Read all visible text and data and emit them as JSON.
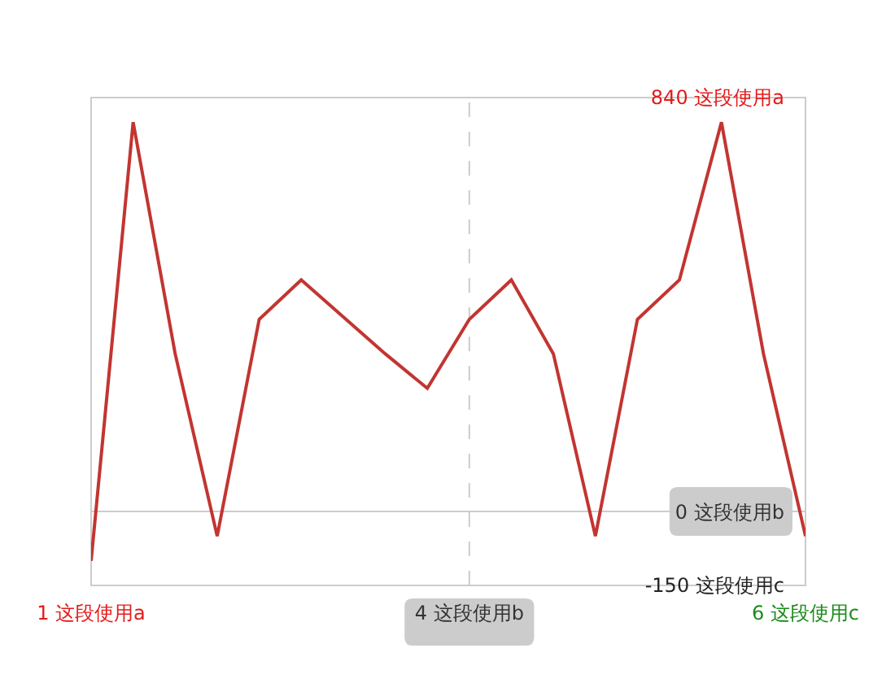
{
  "chart_data": {
    "type": "line",
    "categories": [
      "1 这段使用a",
      null,
      null,
      null,
      null,
      null,
      null,
      null,
      null,
      "4 这段使用b",
      null,
      null,
      null,
      null,
      null,
      null,
      null,
      "6 这段使用c"
    ],
    "values": [
      -100,
      790,
      320,
      -50,
      390,
      470,
      395,
      320,
      250,
      390,
      470,
      320,
      -50,
      390,
      470,
      790,
      320,
      -50
    ],
    "color": "#c23531",
    "line_style": "solid",
    "marker": "none",
    "ylim": [
      -150,
      840
    ],
    "yticks": [
      {
        "value": -150,
        "label": "-150 这段使用c"
      },
      {
        "value": 0,
        "label": "0 这段使用b"
      },
      {
        "value": 840,
        "label": "840 这段使用a"
      }
    ],
    "ref_lines": [
      {
        "axis": "y",
        "value": 0,
        "color": "#cccccc"
      },
      {
        "axis": "x",
        "value": "4 这段使用b",
        "color": "#cccccc",
        "line_style": "dashed"
      }
    ]
  }
}
